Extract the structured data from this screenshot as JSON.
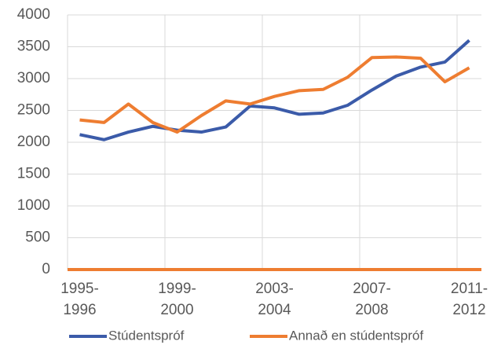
{
  "chart_data": {
    "type": "line",
    "categories": [
      "1995-1996",
      null,
      null,
      null,
      "1999-2000",
      null,
      null,
      null,
      "2003-2004",
      null,
      null,
      null,
      "2007-2008",
      null,
      null,
      null,
      "2011-2012"
    ],
    "series": [
      {
        "name": "Stúdentspróf",
        "color": "#3b5ba9",
        "values": [
          2120,
          2040,
          2160,
          2250,
          2190,
          2160,
          2240,
          2570,
          2540,
          2440,
          2460,
          2580,
          2820,
          3040,
          3180,
          3260,
          3600
        ]
      },
      {
        "name": "Annað en stúdentspróf",
        "color": "#ee7d31",
        "values": [
          2350,
          2310,
          2600,
          2310,
          2160,
          2420,
          2650,
          2600,
          2720,
          2810,
          2830,
          3020,
          3330,
          3340,
          3320,
          2950,
          3170
        ]
      }
    ],
    "ylim": [
      0,
      4000
    ],
    "yticks": [
      0,
      500,
      1000,
      1500,
      2000,
      2500,
      3000,
      3500,
      4000
    ],
    "grid": true
  }
}
